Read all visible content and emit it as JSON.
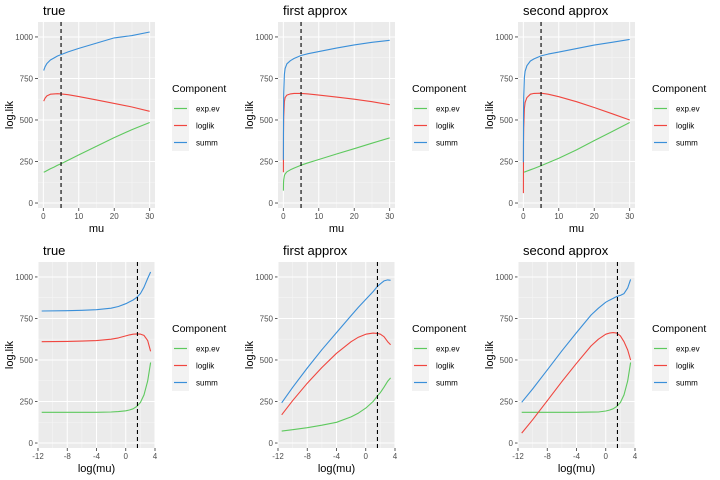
{
  "legend": {
    "title": "Component",
    "entries": [
      {
        "label": "exp.ev",
        "color": "#5ec95e"
      },
      {
        "label": "loglik",
        "color": "#f0463f"
      },
      {
        "label": "summ",
        "color": "#3a8fd9"
      }
    ]
  },
  "colors": {
    "panel_bg": "#ebebeb",
    "grid_major": "#ffffff",
    "tick_text": "#4d4d4d",
    "vline": "#000000"
  },
  "chart_data": [
    {
      "type": "line",
      "title": "true",
      "xlabel": "mu",
      "ylabel": "log.lik",
      "xlim": [
        -1.5,
        31.5
      ],
      "ylim": [
        -30,
        1090
      ],
      "xticks": [
        0,
        10,
        20,
        30
      ],
      "xtick_labels": [
        "0",
        "10",
        "20",
        "30"
      ],
      "yticks": [
        0,
        250,
        500,
        750,
        1000
      ],
      "ytick_labels": [
        "0",
        "250",
        "500",
        "750",
        "1000"
      ],
      "vline": 5,
      "legend_position": "right",
      "x": [
        0.1,
        0.5,
        1,
        2,
        3,
        4,
        5,
        7,
        10,
        15,
        20,
        25,
        30
      ],
      "series": [
        {
          "name": "exp.ev",
          "values": [
            185,
            189,
            195,
            206,
            216,
            227,
            237,
            258,
            290,
            342,
            394,
            442,
            485
          ]
        },
        {
          "name": "loglik",
          "values": [
            613,
            632,
            645,
            655,
            657,
            658,
            657,
            652,
            641,
            621,
            600,
            578,
            552
          ]
        },
        {
          "name": "summ",
          "values": [
            798,
            821,
            840,
            861,
            873,
            885,
            894,
            910,
            931,
            963,
            994,
            1008,
            1030
          ]
        }
      ]
    },
    {
      "type": "line",
      "title": "first approx",
      "xlabel": "mu",
      "ylabel": "log.lik",
      "xlim": [
        -1.5,
        31.5
      ],
      "ylim": [
        -30,
        1090
      ],
      "xticks": [
        0,
        10,
        20,
        30
      ],
      "xtick_labels": [
        "0",
        "10",
        "20",
        "30"
      ],
      "yticks": [
        0,
        250,
        500,
        750,
        1000
      ],
      "ytick_labels": [
        "0",
        "250",
        "500",
        "750",
        "1000"
      ],
      "vline": 5,
      "legend_position": "right",
      "x": [
        0.01,
        0.05,
        0.1,
        0.3,
        0.5,
        1,
        2,
        3,
        5,
        7,
        10,
        15,
        20,
        25,
        30
      ],
      "series": [
        {
          "name": "exp.ev",
          "values": [
            75,
            120,
            140,
            165,
            175,
            188,
            200,
            210,
            228,
            242,
            262,
            295,
            327,
            360,
            392
          ]
        },
        {
          "name": "loglik",
          "values": [
            185,
            420,
            520,
            610,
            635,
            650,
            657,
            660,
            660,
            657,
            650,
            638,
            625,
            610,
            592
          ]
        },
        {
          "name": "summ",
          "values": [
            260,
            540,
            660,
            775,
            810,
            838,
            857,
            870,
            888,
            899,
            912,
            933,
            952,
            968,
            980
          ]
        }
      ]
    },
    {
      "type": "line",
      "title": "second approx",
      "xlabel": "mu",
      "ylabel": "log.lik",
      "xlim": [
        -1.5,
        31.5
      ],
      "ylim": [
        -30,
        1090
      ],
      "xticks": [
        0,
        10,
        20,
        30
      ],
      "xtick_labels": [
        "0",
        "10",
        "20",
        "30"
      ],
      "yticks": [
        0,
        250,
        500,
        750,
        1000
      ],
      "ytick_labels": [
        "0",
        "250",
        "500",
        "750",
        "1000"
      ],
      "vline": 5,
      "legend_position": "right",
      "x": [
        0.01,
        0.05,
        0.1,
        0.3,
        0.5,
        1,
        2,
        3,
        5,
        7,
        10,
        15,
        20,
        25,
        30
      ],
      "series": [
        {
          "name": "exp.ev",
          "values": [
            185,
            185,
            186,
            187,
            188,
            192,
            200,
            208,
            225,
            242,
            269,
            320,
            376,
            430,
            485
          ]
        },
        {
          "name": "loglik",
          "values": [
            60,
            350,
            450,
            570,
            605,
            635,
            655,
            660,
            661,
            655,
            640,
            610,
            575,
            538,
            500
          ]
        },
        {
          "name": "summ",
          "values": [
            245,
            535,
            636,
            757,
            793,
            827,
            855,
            868,
            886,
            897,
            909,
            930,
            951,
            968,
            985
          ]
        }
      ]
    },
    {
      "type": "line",
      "title": "true",
      "xlabel": "log(mu)",
      "ylabel": "log.lik",
      "xlim": [
        -12,
        4
      ],
      "ylim": [
        -30,
        1090
      ],
      "xticks": [
        -12,
        -8,
        -4,
        0,
        4
      ],
      "xtick_labels": [
        "-12",
        "-8",
        "-4",
        "0",
        "4"
      ],
      "yticks": [
        0,
        250,
        500,
        750,
        1000
      ],
      "ytick_labels": [
        "0",
        "250",
        "500",
        "750",
        "1000"
      ],
      "vline": 1.6,
      "legend_position": "right",
      "x": [
        -11.5,
        -8,
        -6,
        -4,
        -2,
        -1,
        0,
        0.5,
        1,
        1.5,
        2,
        2.5,
        3,
        3.4
      ],
      "series": [
        {
          "name": "exp.ev",
          "values": [
            185,
            185,
            185,
            185,
            187,
            189,
            194,
            199,
            206,
            220,
            244,
            290,
            374,
            485
          ]
        },
        {
          "name": "loglik",
          "values": [
            610,
            612,
            614,
            617,
            625,
            633,
            645,
            651,
            655,
            657,
            656,
            648,
            617,
            552
          ]
        },
        {
          "name": "summ",
          "values": [
            795,
            797,
            799,
            803,
            812,
            822,
            839,
            850,
            861,
            877,
            900,
            938,
            991,
            1030
          ]
        }
      ]
    },
    {
      "type": "line",
      "title": "first approx",
      "xlabel": "log(mu)",
      "ylabel": "log.lik",
      "xlim": [
        -12,
        4
      ],
      "ylim": [
        -30,
        1090
      ],
      "xticks": [
        -12,
        -8,
        -4,
        0,
        4
      ],
      "xtick_labels": [
        "-12",
        "-8",
        "-4",
        "0",
        "4"
      ],
      "yticks": [
        0,
        250,
        500,
        750,
        1000
      ],
      "ytick_labels": [
        "0",
        "250",
        "500",
        "750",
        "1000"
      ],
      "vline": 1.6,
      "legend_position": "right",
      "x": [
        -11.5,
        -10,
        -8,
        -6,
        -4,
        -2,
        -1,
        0,
        1,
        1.6,
        2,
        2.5,
        3,
        3.4
      ],
      "series": [
        {
          "name": "exp.ev",
          "values": [
            72,
            80,
            92,
            107,
            125,
            157,
            180,
            210,
            250,
            283,
            304,
            336,
            372,
            392
          ]
        },
        {
          "name": "loglik",
          "values": [
            170,
            255,
            360,
            455,
            540,
            610,
            637,
            655,
            662,
            660,
            655,
            640,
            610,
            592
          ]
        },
        {
          "name": "summ",
          "values": [
            242,
            335,
            452,
            562,
            665,
            767,
            817,
            865,
            912,
            943,
            959,
            976,
            982,
            980
          ]
        }
      ]
    },
    {
      "type": "line",
      "title": "second approx",
      "xlabel": "log(mu)",
      "ylabel": "log.lik",
      "xlim": [
        -12,
        4
      ],
      "ylim": [
        -30,
        1090
      ],
      "xticks": [
        -12,
        -8,
        -4,
        0,
        4
      ],
      "xtick_labels": [
        "-12",
        "-8",
        "-4",
        "0",
        "4"
      ],
      "yticks": [
        0,
        250,
        500,
        750,
        1000
      ],
      "ytick_labels": [
        "0",
        "250",
        "500",
        "750",
        "1000"
      ],
      "vline": 1.6,
      "legend_position": "right",
      "x": [
        -11.5,
        -10,
        -8,
        -6,
        -4,
        -2,
        -1,
        0,
        0.5,
        1,
        1.5,
        2,
        2.5,
        3,
        3.4
      ],
      "series": [
        {
          "name": "exp.ev",
          "values": [
            185,
            185,
            185,
            185,
            185,
            186,
            187,
            193,
            198,
            206,
            220,
            244,
            290,
            374,
            485
          ]
        },
        {
          "name": "loglik",
          "values": [
            60,
            140,
            255,
            370,
            480,
            585,
            625,
            655,
            662,
            665,
            662,
            645,
            610,
            560,
            500
          ]
        },
        {
          "name": "summ",
          "values": [
            245,
            325,
            440,
            555,
            665,
            771,
            812,
            848,
            860,
            871,
            882,
            889,
            900,
            934,
            985
          ]
        }
      ]
    }
  ]
}
